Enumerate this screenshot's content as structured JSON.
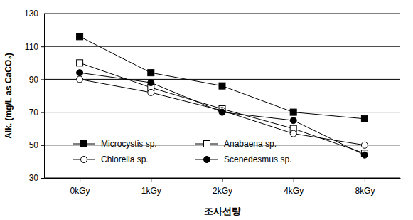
{
  "chart_data": {
    "type": "line",
    "x_label": "조사선량",
    "y_label": "Alk. (mg/L as CaCO₃)",
    "categories": [
      "0kGy",
      "1kGy",
      "2kGy",
      "4kGy",
      "8kGy"
    ],
    "series": [
      {
        "name": "Microcystis sp.",
        "color": "#000000",
        "marker": "square",
        "values": [
          116,
          94,
          86,
          70,
          66
        ]
      },
      {
        "name": "Anabaena sp.",
        "color": "#000000",
        "marker": "square-open",
        "values": [
          100,
          85,
          72,
          60,
          45
        ]
      },
      {
        "name": "Chlorella sp.",
        "color": "#000000",
        "marker": "circle-open",
        "values": [
          90,
          82,
          71,
          57,
          50
        ]
      },
      {
        "name": "Scenedesmus sp.",
        "color": "#000000",
        "marker": "circle",
        "values": [
          94,
          88,
          70,
          65,
          44
        ]
      }
    ],
    "ylim": [
      30,
      130
    ],
    "yticks": [
      30,
      50,
      70,
      90,
      110,
      130
    ],
    "grid": true,
    "legend": "lower left"
  }
}
